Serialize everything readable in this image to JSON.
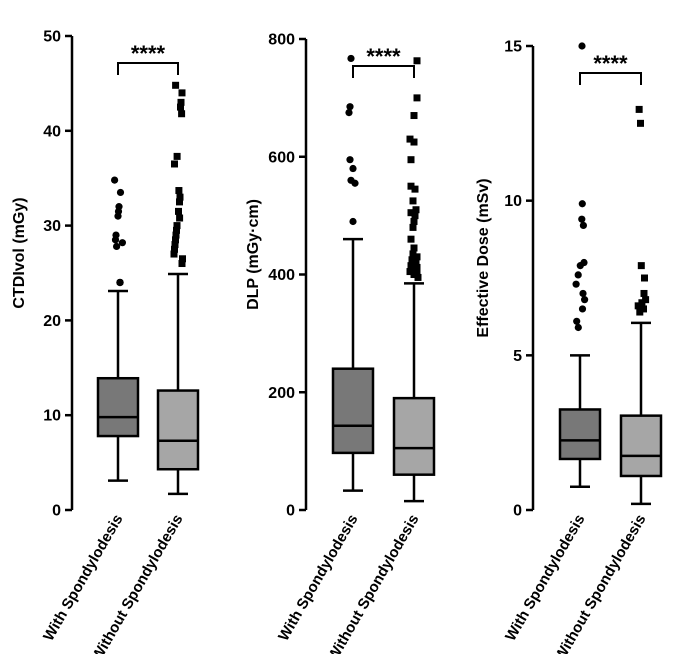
{
  "chart_data": [
    {
      "type": "box",
      "ylabel": "CTDIvol (mGy)",
      "ylim": [
        0,
        50
      ],
      "yticks": [
        0,
        10,
        20,
        30,
        40,
        50
      ],
      "categories": [
        "With Spondylodesis",
        "Without Spondylodesis"
      ],
      "significance": "****",
      "boxes": [
        {
          "category": "With Spondylodesis",
          "color": "#787878",
          "whisker_low": 3.1,
          "q1": 7.8,
          "median": 9.8,
          "q3": 13.9,
          "whisker_high": 23.1,
          "outliers": [
            24.0,
            24.0,
            24.0,
            24.0,
            24.0,
            27.8,
            28.2,
            28.5,
            29.0,
            31.0,
            31.5,
            32.0,
            33.5,
            34.8
          ]
        },
        {
          "category": "Without Spondylodesis",
          "color": "#a6a6a6",
          "whisker_low": 1.7,
          "q1": 4.3,
          "median": 7.3,
          "q3": 12.6,
          "whisker_high": 24.9,
          "outliers": [
            26.0,
            26.5,
            27.0,
            27.5,
            28.0,
            28.5,
            29.0,
            29.5,
            30.0,
            30.8,
            31.5,
            32.5,
            33.0,
            33.7,
            36.5,
            37.3,
            41.8,
            42.5,
            43.0,
            44.0,
            44.8
          ]
        }
      ]
    },
    {
      "type": "box",
      "ylabel": "DLP (mGy·cm)",
      "ylim": [
        0,
        800
      ],
      "yticks": [
        0,
        200,
        400,
        600,
        800
      ],
      "categories": [
        "With Spondylodesis",
        "Without Spondylodesis"
      ],
      "significance": "****",
      "boxes": [
        {
          "category": "With Spondylodesis",
          "color": "#787878",
          "whisker_low": 33,
          "q1": 97,
          "median": 143,
          "q3": 240,
          "whisker_high": 460,
          "outliers": [
            490,
            555,
            560,
            580,
            595,
            675,
            685,
            767
          ]
        },
        {
          "category": "Without Spondylodesis",
          "color": "#a6a6a6",
          "whisker_low": 15,
          "q1": 60,
          "median": 105,
          "q3": 190,
          "whisker_high": 385,
          "outliers": [
            395,
            400,
            403,
            405,
            408,
            412,
            415,
            420,
            425,
            430,
            435,
            445,
            460,
            480,
            490,
            500,
            505,
            510,
            525,
            545,
            550,
            595,
            625,
            630,
            670,
            700,
            763
          ]
        }
      ]
    },
    {
      "type": "box",
      "ylabel": "Effective Dose (mSv)",
      "ylim": [
        0,
        15
      ],
      "yticks": [
        0,
        5,
        10,
        15
      ],
      "categories": [
        "With Spondylodesis",
        "Without Spondylodesis"
      ],
      "significance": "****",
      "boxes": [
        {
          "category": "With Spondylodesis",
          "color": "#787878",
          "whisker_low": 0.75,
          "q1": 1.65,
          "median": 2.25,
          "q3": 3.25,
          "whisker_high": 5.0,
          "outliers": [
            5.9,
            6.1,
            6.5,
            6.8,
            7.0,
            7.3,
            7.6,
            7.9,
            8.0,
            9.2,
            9.4,
            9.9,
            15.0
          ]
        },
        {
          "category": "Without Spondylodesis",
          "color": "#a6a6a6",
          "whisker_low": 0.2,
          "q1": 1.1,
          "median": 1.75,
          "q3": 3.05,
          "whisker_high": 6.05,
          "outliers": [
            6.4,
            6.5,
            6.6,
            6.7,
            6.8,
            7.0,
            7.5,
            7.9,
            12.5,
            12.95
          ]
        }
      ]
    }
  ]
}
